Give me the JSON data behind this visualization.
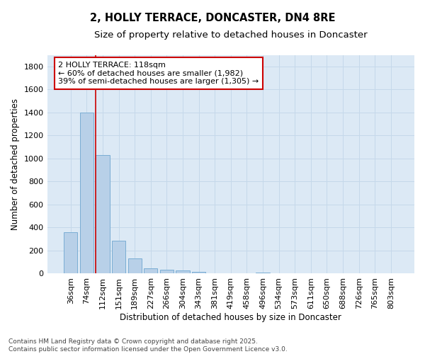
{
  "title": "2, HOLLY TERRACE, DONCASTER, DN4 8RE",
  "subtitle": "Size of property relative to detached houses in Doncaster",
  "xlabel": "Distribution of detached houses by size in Doncaster",
  "ylabel": "Number of detached properties",
  "categories": [
    "36sqm",
    "74sqm",
    "112sqm",
    "151sqm",
    "189sqm",
    "227sqm",
    "266sqm",
    "304sqm",
    "343sqm",
    "381sqm",
    "419sqm",
    "458sqm",
    "496sqm",
    "534sqm",
    "573sqm",
    "611sqm",
    "650sqm",
    "688sqm",
    "726sqm",
    "765sqm",
    "803sqm"
  ],
  "values": [
    360,
    1400,
    1030,
    285,
    135,
    45,
    35,
    30,
    18,
    5,
    0,
    0,
    6,
    0,
    0,
    0,
    0,
    0,
    0,
    0,
    0
  ],
  "bar_color": "#b8d0e8",
  "bar_edge_color": "#7aadd4",
  "vline_color": "#cc0000",
  "annotation_text": "2 HOLLY TERRACE: 118sqm\n← 60% of detached houses are smaller (1,982)\n39% of semi-detached houses are larger (1,305) →",
  "annotation_box_facecolor": "#ffffff",
  "annotation_box_edgecolor": "#cc0000",
  "ylim": [
    0,
    1900
  ],
  "yticks": [
    0,
    200,
    400,
    600,
    800,
    1000,
    1200,
    1400,
    1600,
    1800
  ],
  "grid_color": "#c5d8ea",
  "background_color": "#dce9f5",
  "footer": "Contains HM Land Registry data © Crown copyright and database right 2025.\nContains public sector information licensed under the Open Government Licence v3.0.",
  "title_fontsize": 10.5,
  "subtitle_fontsize": 9.5,
  "axis_label_fontsize": 8.5,
  "tick_fontsize": 8,
  "annotation_fontsize": 8,
  "footer_fontsize": 6.5
}
